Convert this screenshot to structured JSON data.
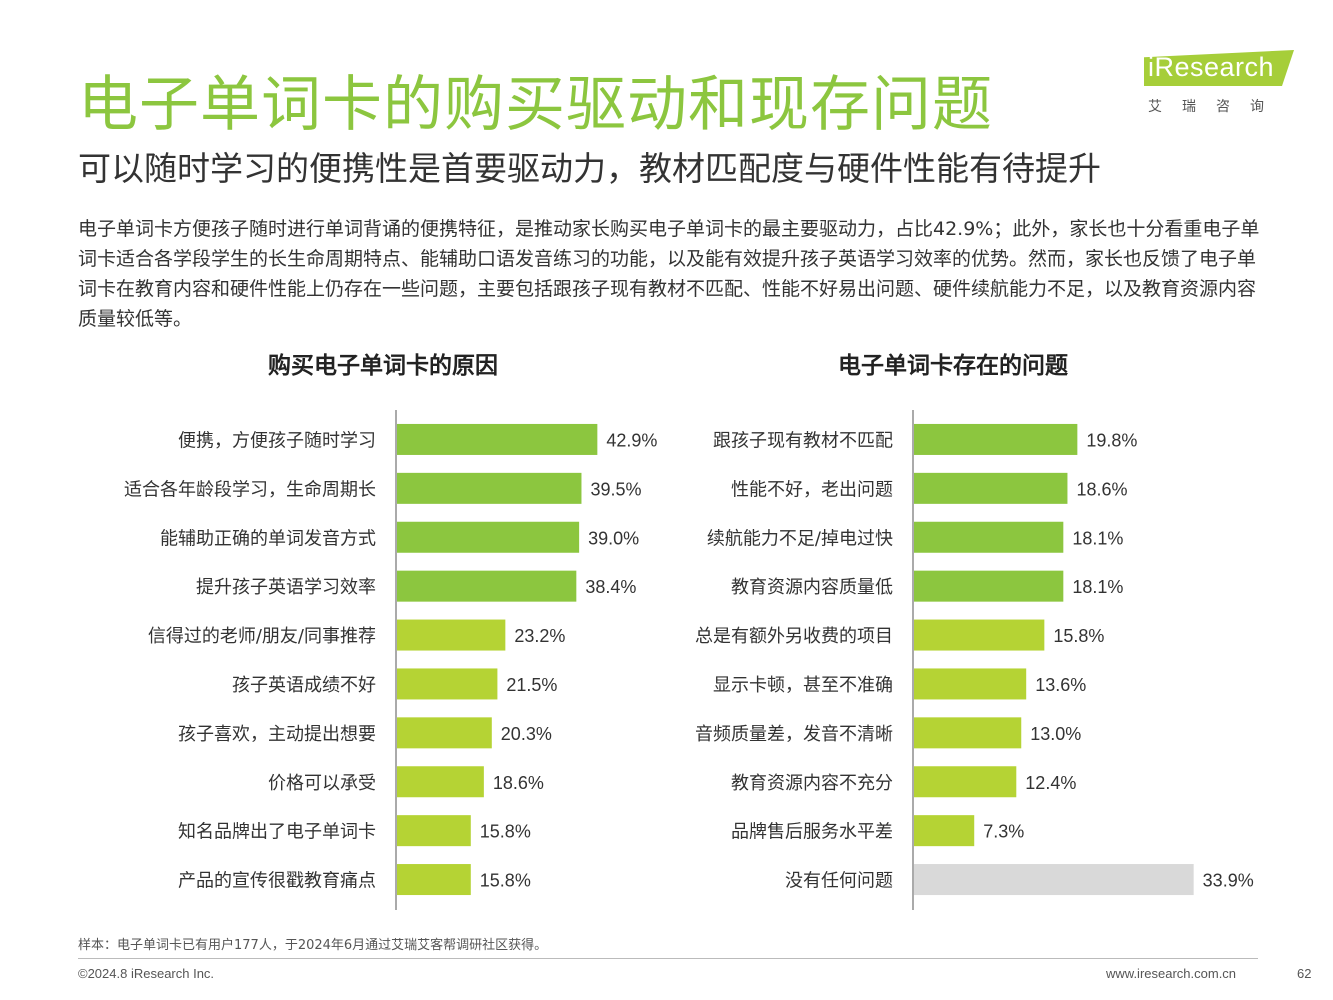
{
  "header": {
    "title": "电子单词卡的购买驱动和现存问题",
    "subtitle": "可以随时学习的便携性是首要驱动力，教材匹配度与硬件性能有待提升"
  },
  "logo": {
    "brand": "iResearch",
    "cn": "艾瑞咨询"
  },
  "intro": "电子单词卡方便孩子随时进行单词背诵的便携特征，是推动家长购买电子单词卡的最主要驱动力，占比42.9%；此外，家长也十分看重电子单词卡适合各学段学生的长生命周期特点、能辅助口语发音练习的功能，以及能有效提升孩子英语学习效率的优势。然而，家长也反馈了电子单词卡在教育内容和硬件性能上仍存在一些问题，主要包括跟孩子现有教材不匹配、性能不好易出问题、硬件续航能力不足，以及教育资源内容质量较低等。",
  "colors": {
    "dark_green": "#8cc63f",
    "light_green": "#b5d334",
    "gray": "#d9d9d9",
    "title_green": "#8cc63f"
  },
  "chart_data": [
    {
      "type": "bar",
      "orientation": "horizontal",
      "title": "购买电子单词卡的原因",
      "unit": "%",
      "categories": [
        "便携，方便孩子随时学习",
        "适合各年龄段学习，生命周期长",
        "能辅助正确的单词发音方式",
        "提升孩子英语学习效率",
        "信得过的老师/朋友/同事推荐",
        "孩子英语成绩不好",
        "孩子喜欢，主动提出想要",
        "价格可以承受",
        "知名品牌出了电子单词卡",
        "产品的宣传很戳教育痛点"
      ],
      "values": [
        42.9,
        39.5,
        39.0,
        38.4,
        23.2,
        21.5,
        20.3,
        18.6,
        15.8,
        15.8
      ],
      "labels": [
        "42.9%",
        "39.5%",
        "39.0%",
        "38.4%",
        "23.2%",
        "21.5%",
        "20.3%",
        "18.6%",
        "15.8%",
        "15.8%"
      ],
      "color_groups": [
        "dark",
        "dark",
        "dark",
        "dark",
        "light",
        "light",
        "light",
        "light",
        "light",
        "light"
      ],
      "xlim": [
        0,
        45
      ]
    },
    {
      "type": "bar",
      "orientation": "horizontal",
      "title": "电子单词卡存在的问题",
      "unit": "%",
      "categories": [
        "跟孩子现有教材不匹配",
        "性能不好，老出问题",
        "续航能力不足/掉电过快",
        "教育资源内容质量低",
        "总是有额外另收费的项目",
        "显示卡顿，甚至不准确",
        "音频质量差，发音不清晰",
        "教育资源内容不充分",
        "品牌售后服务水平差",
        "没有任何问题"
      ],
      "values": [
        19.8,
        18.6,
        18.1,
        18.1,
        15.8,
        13.6,
        13.0,
        12.4,
        7.3,
        33.9
      ],
      "labels": [
        "19.8%",
        "18.6%",
        "18.1%",
        "18.1%",
        "15.8%",
        "13.6%",
        "13.0%",
        "12.4%",
        "7.3%",
        "33.9%"
      ],
      "color_groups": [
        "dark",
        "dark",
        "dark",
        "dark",
        "light",
        "light",
        "light",
        "light",
        "light",
        "gray"
      ],
      "xlim": [
        0,
        34
      ]
    }
  ],
  "footer": {
    "note": "样本：电子单词卡已有用户177人，于2024年6月通过艾瑞艾客帮调研社区获得。",
    "copyright": "©2024.8 iResearch Inc.",
    "website": "www.iresearch.com.cn",
    "page": "62"
  }
}
